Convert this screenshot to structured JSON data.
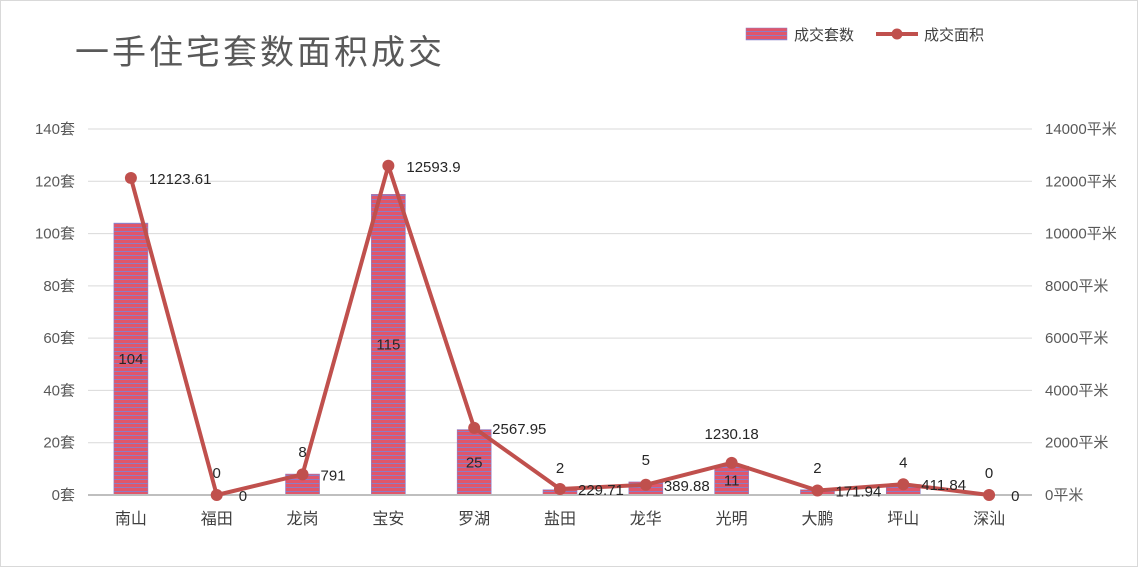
{
  "chart_data": {
    "type": "bar+line",
    "title": "一手住宅套数面积成交",
    "categories": [
      "南山",
      "福田",
      "龙岗",
      "宝安",
      "罗湖",
      "盐田",
      "龙华",
      "光明",
      "大鹏",
      "坪山",
      "深汕"
    ],
    "series": [
      {
        "name": "成交套数",
        "type": "bar",
        "axis": "left",
        "values": [
          104,
          0,
          8,
          115,
          25,
          2,
          5,
          11,
          2,
          4,
          0
        ],
        "labels": [
          "104",
          "0",
          "8",
          "115",
          "25",
          "2",
          "5",
          "11",
          "2",
          "4",
          "0"
        ]
      },
      {
        "name": "成交面积",
        "type": "line",
        "axis": "right",
        "values": [
          12123.61,
          0,
          791,
          12593.9,
          2567.95,
          229.71,
          389.88,
          1230.18,
          171.94,
          411.84,
          0
        ],
        "labels": [
          "12123.61",
          "0",
          "791",
          "12593.9",
          "2567.95",
          "229.71",
          "389.88",
          "1230.18",
          "171.94",
          "411.84",
          "0"
        ]
      }
    ],
    "y_left": {
      "ylim": [
        0,
        140
      ],
      "ticks": [
        0,
        20,
        40,
        60,
        80,
        100,
        120,
        140
      ],
      "tick_labels": [
        "0套",
        "20套",
        "40套",
        "60套",
        "80套",
        "100套",
        "120套",
        "140套"
      ]
    },
    "y_right": {
      "ylim": [
        0,
        14000
      ],
      "ticks": [
        0,
        2000,
        4000,
        6000,
        8000,
        10000,
        12000,
        14000
      ],
      "tick_labels": [
        "0平米",
        "2000平米",
        "4000平米",
        "6000平米",
        "8000平米",
        "10000平米",
        "12000平米",
        "14000平米"
      ]
    },
    "grid": true,
    "legend": "top-right",
    "colors": {
      "bar_fill": "#d9485c",
      "bar_stripe": "#8e7cc3",
      "line": "#c0504d",
      "grid": "#d9d9d9",
      "axis": "#bfbfbf"
    }
  }
}
